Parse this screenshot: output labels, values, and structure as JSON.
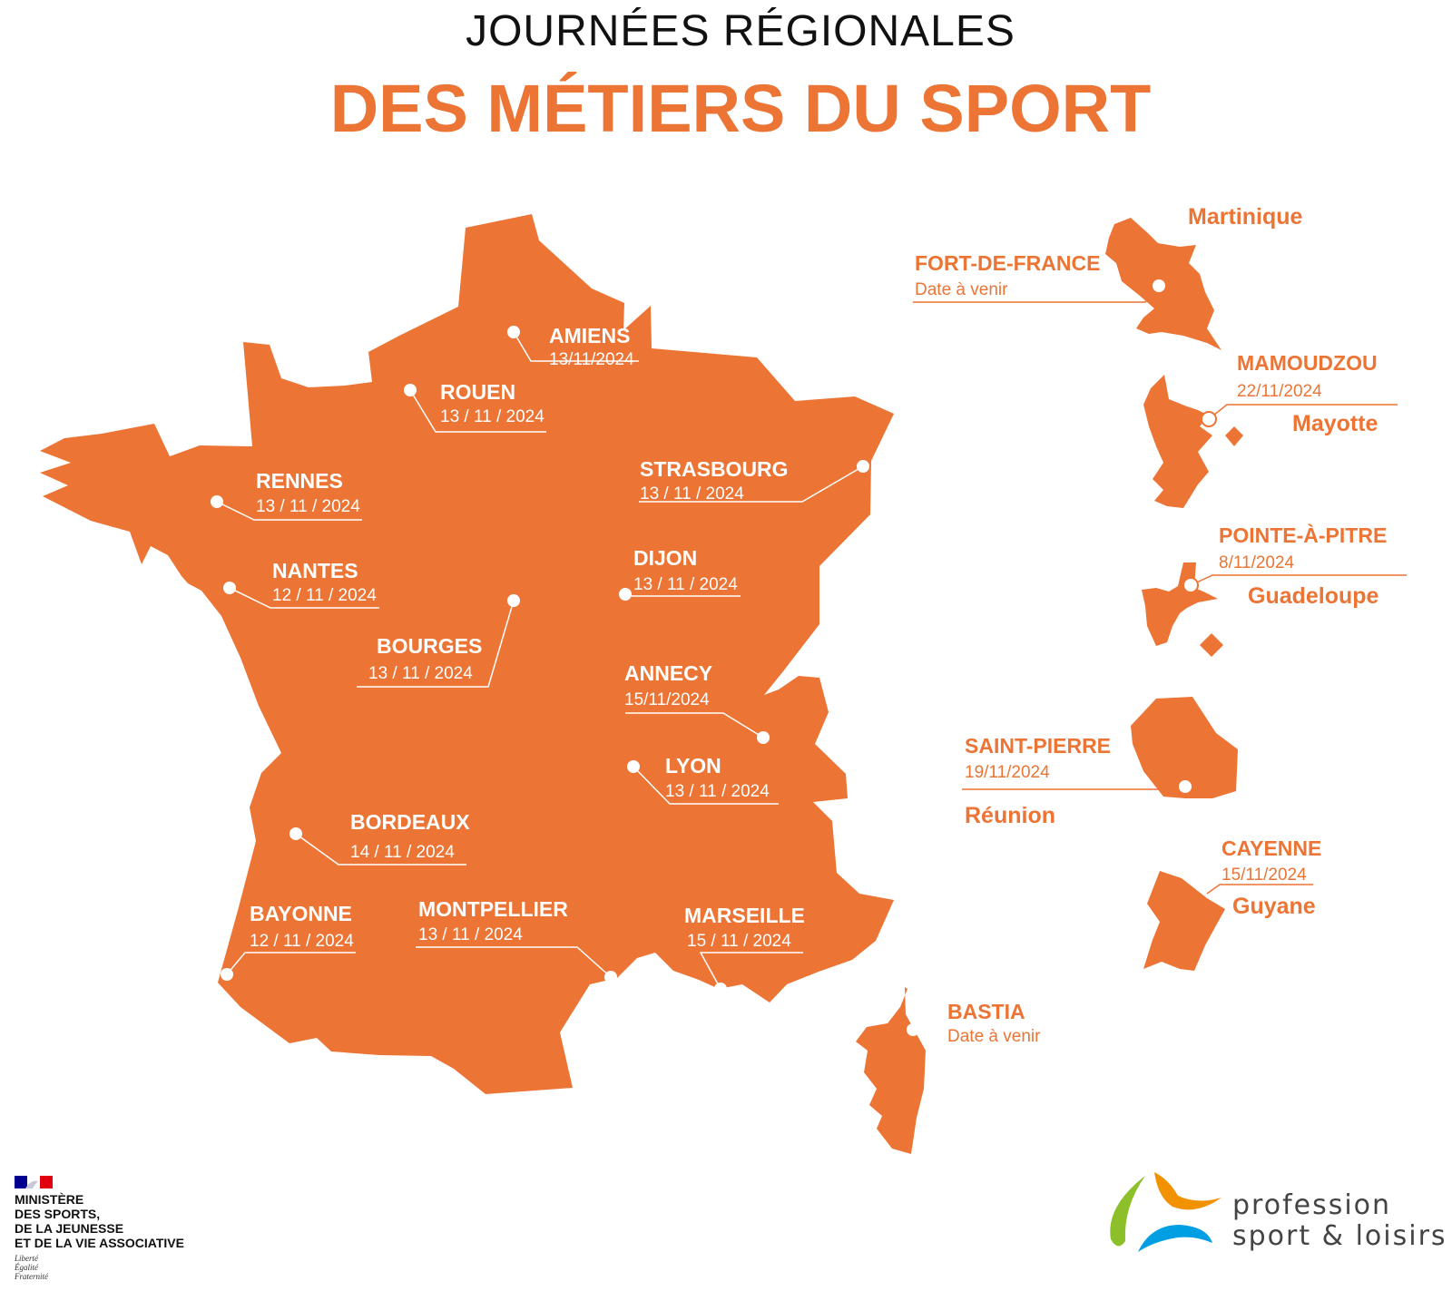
{
  "header": {
    "title_line1": "JOURNÉES RÉGIONALES",
    "title_line2": "DES MÉTIERS DU SPORT"
  },
  "colors": {
    "accent": "#ec7434",
    "map_fill": "#ec7434",
    "text_dark": "#111111"
  },
  "mainland_cities": [
    {
      "name": "AMIENS",
      "date": "13/11/2024"
    },
    {
      "name": "ROUEN",
      "date": "13 / 11 / 2024"
    },
    {
      "name": "RENNES",
      "date": "13 / 11 / 2024"
    },
    {
      "name": "NANTES",
      "date": "12 / 11 / 2024"
    },
    {
      "name": "STRASBOURG",
      "date": "13 / 11 / 2024"
    },
    {
      "name": "DIJON",
      "date": "13 / 11 / 2024"
    },
    {
      "name": "BOURGES",
      "date": "13 / 11 / 2024"
    },
    {
      "name": "ANNECY",
      "date": "15/11/2024"
    },
    {
      "name": "LYON",
      "date": "13 / 11 / 2024"
    },
    {
      "name": "BORDEAUX",
      "date": "14 / 11 / 2024"
    },
    {
      "name": "BAYONNE",
      "date": "12 / 11 / 2024"
    },
    {
      "name": "MONTPELLIER",
      "date": "13 / 11 / 2024"
    },
    {
      "name": "MARSEILLE",
      "date": "15 / 11 / 2024"
    }
  ],
  "corsica": {
    "name": "BASTIA",
    "date": "Date à venir"
  },
  "overseas": [
    {
      "territory": "Martinique",
      "city": "FORT-DE-FRANCE",
      "date": "Date à venir"
    },
    {
      "territory": "Mayotte",
      "city": "MAMOUDZOU",
      "date": "22/11/2024"
    },
    {
      "territory": "Guadeloupe",
      "city": "POINTE-À-PITRE",
      "date": "8/11/2024"
    },
    {
      "territory": "Réunion",
      "city": "SAINT-PIERRE",
      "date": "19/11/2024"
    },
    {
      "territory": "Guyane",
      "city": "CAYENNE",
      "date": "15/11/2024"
    }
  ],
  "footer": {
    "ministry_lines": [
      "MINISTÈRE",
      "DES SPORTS,",
      "DE LA JEUNESSE",
      "ET DE LA VIE ASSOCIATIVE"
    ],
    "motto": [
      "Liberté",
      "Égalité",
      "Fraternité"
    ],
    "partner_line1": "profession",
    "partner_line2": "sport & loisirs"
  }
}
